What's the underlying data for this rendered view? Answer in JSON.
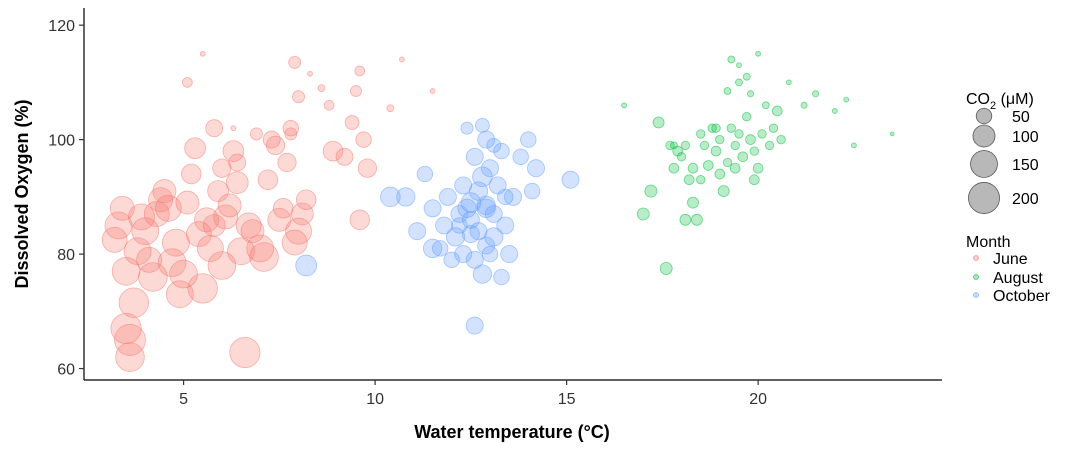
{
  "chart_data": {
    "type": "scatter",
    "xlabel": "Water temperature (°C)",
    "ylabel": "Dissolved Oxygen (%)",
    "xlim": [
      2.4,
      24.8
    ],
    "ylim": [
      58,
      123
    ],
    "xticks": [
      5,
      10,
      15,
      20
    ],
    "yticks": [
      60,
      80,
      100,
      120
    ],
    "grid": false,
    "legend_position": "right",
    "size_legend": {
      "title_main": "CO",
      "title_sub": "2",
      "title_suffix": " (μM)",
      "values": [
        50,
        100,
        150,
        200
      ]
    },
    "color_legend": {
      "title": "Month",
      "entries": [
        "June",
        "August",
        "October"
      ]
    },
    "series": [
      {
        "name": "June",
        "color": "#F8766D",
        "points": [
          [
            3.2,
            82.5,
            130
          ],
          [
            3.3,
            85,
            150
          ],
          [
            3.4,
            88,
            120
          ],
          [
            3.5,
            77,
            160
          ],
          [
            3.5,
            67,
            190
          ],
          [
            3.6,
            65,
            200
          ],
          [
            3.6,
            62,
            170
          ],
          [
            3.7,
            71.5,
            180
          ],
          [
            3.8,
            80.5,
            150
          ],
          [
            3.9,
            86.5,
            140
          ],
          [
            4.0,
            84,
            150
          ],
          [
            4.1,
            79,
            130
          ],
          [
            4.2,
            76,
            170
          ],
          [
            4.3,
            87,
            130
          ],
          [
            4.4,
            89.5,
            120
          ],
          [
            4.5,
            91,
            110
          ],
          [
            4.6,
            88,
            140
          ],
          [
            4.7,
            78.5,
            160
          ],
          [
            4.8,
            82,
            150
          ],
          [
            4.9,
            73,
            150
          ],
          [
            5.0,
            76.5,
            160
          ],
          [
            5.1,
            89,
            110
          ],
          [
            5.2,
            94,
            80
          ],
          [
            5.3,
            98.5,
            90
          ],
          [
            5.4,
            83.5,
            130
          ],
          [
            5.5,
            74,
            180
          ],
          [
            5.6,
            86,
            120
          ],
          [
            5.7,
            81,
            140
          ],
          [
            5.8,
            85,
            100
          ],
          [
            5.9,
            91,
            90
          ],
          [
            6.0,
            78,
            160
          ],
          [
            6.1,
            86.5,
            120
          ],
          [
            6.2,
            88.5,
            110
          ],
          [
            6.3,
            98,
            90
          ],
          [
            6.4,
            92.5,
            100
          ],
          [
            6.5,
            80.5,
            150
          ],
          [
            6.6,
            62.8,
            190
          ],
          [
            6.7,
            85,
            130
          ],
          [
            6.8,
            84,
            110
          ],
          [
            7.0,
            81,
            150
          ],
          [
            7.1,
            79.5,
            170
          ],
          [
            7.2,
            93,
            80
          ],
          [
            7.3,
            100,
            60
          ],
          [
            7.5,
            86,
            110
          ],
          [
            7.6,
            88,
            80
          ],
          [
            7.7,
            96,
            70
          ],
          [
            7.8,
            102,
            50
          ],
          [
            7.9,
            82,
            130
          ],
          [
            8.0,
            84,
            140
          ],
          [
            8.1,
            87,
            100
          ],
          [
            8.2,
            89.5,
            80
          ],
          [
            7.9,
            113.5,
            30
          ],
          [
            8.0,
            107.5,
            30
          ],
          [
            8.3,
            111.5,
            5
          ],
          [
            8.6,
            109,
            10
          ],
          [
            8.8,
            106,
            20
          ],
          [
            8.9,
            98,
            80
          ],
          [
            9.2,
            97,
            60
          ],
          [
            9.4,
            103,
            40
          ],
          [
            9.5,
            108.5,
            25
          ],
          [
            9.7,
            100,
            50
          ],
          [
            9.8,
            95,
            70
          ],
          [
            9.6,
            86,
            80
          ],
          [
            5.1,
            110,
            20
          ],
          [
            5.5,
            115,
            5
          ],
          [
            5.8,
            102,
            60
          ],
          [
            6.0,
            95,
            70
          ],
          [
            6.4,
            96,
            60
          ],
          [
            6.9,
            101,
            30
          ],
          [
            7.4,
            99,
            70
          ],
          [
            7.8,
            101,
            30
          ],
          [
            9.6,
            112,
            20
          ],
          [
            10.4,
            105.5,
            10
          ],
          [
            11.5,
            108.5,
            5
          ],
          [
            6.3,
            102,
            5
          ],
          [
            10.7,
            114,
            5
          ]
        ]
      },
      {
        "name": "August",
        "color": "#00BA38",
        "points": [
          [
            16.5,
            106,
            5
          ],
          [
            17.0,
            87,
            30
          ],
          [
            17.2,
            91,
            30
          ],
          [
            17.4,
            103,
            25
          ],
          [
            17.6,
            77.5,
            30
          ],
          [
            17.8,
            95,
            20
          ],
          [
            17.7,
            99,
            15
          ],
          [
            17.9,
            98,
            20
          ],
          [
            18.0,
            97,
            15
          ],
          [
            18.1,
            86,
            25
          ],
          [
            18.1,
            99,
            15
          ],
          [
            18.2,
            93,
            20
          ],
          [
            18.3,
            89,
            25
          ],
          [
            18.3,
            95,
            20
          ],
          [
            18.4,
            86,
            25
          ],
          [
            18.5,
            101,
            15
          ],
          [
            18.6,
            99,
            15
          ],
          [
            18.7,
            95.5,
            20
          ],
          [
            18.8,
            102,
            15
          ],
          [
            18.9,
            98,
            20
          ],
          [
            19.0,
            100,
            15
          ],
          [
            19.0,
            94,
            20
          ],
          [
            19.1,
            91,
            25
          ],
          [
            19.2,
            96,
            15
          ],
          [
            19.3,
            102,
            15
          ],
          [
            19.3,
            114,
            10
          ],
          [
            19.4,
            99,
            15
          ],
          [
            19.5,
            101,
            15
          ],
          [
            19.5,
            110,
            10
          ],
          [
            19.6,
            97,
            20
          ],
          [
            19.7,
            104,
            15
          ],
          [
            19.7,
            111,
            10
          ],
          [
            19.8,
            100,
            20
          ],
          [
            19.9,
            98,
            15
          ],
          [
            20.0,
            95,
            20
          ],
          [
            20.1,
            101,
            15
          ],
          [
            20.2,
            106,
            10
          ],
          [
            20.4,
            102,
            15
          ],
          [
            20.5,
            105,
            20
          ],
          [
            20.6,
            100,
            15
          ],
          [
            20.8,
            110,
            5
          ],
          [
            21.2,
            106,
            8
          ],
          [
            21.5,
            108,
            8
          ],
          [
            22.0,
            105,
            5
          ],
          [
            22.3,
            107,
            5
          ],
          [
            22.5,
            99,
            5
          ],
          [
            20.0,
            115,
            5
          ],
          [
            19.2,
            108.5,
            10
          ],
          [
            19.9,
            93,
            20
          ],
          [
            20.3,
            99,
            15
          ],
          [
            18.9,
            102,
            15
          ],
          [
            19.4,
            95,
            20
          ],
          [
            18.5,
            93,
            15
          ],
          [
            17.8,
            99,
            10
          ],
          [
            23.5,
            101,
            3
          ],
          [
            19.8,
            108,
            8
          ],
          [
            19.5,
            113,
            5
          ]
        ]
      },
      {
        "name": "October",
        "color": "#619CFF",
        "points": [
          [
            8.2,
            78,
            90
          ],
          [
            10.4,
            90,
            80
          ],
          [
            10.8,
            90,
            70
          ],
          [
            11.1,
            84,
            60
          ],
          [
            11.3,
            94,
            50
          ],
          [
            11.5,
            81,
            70
          ],
          [
            11.5,
            88,
            60
          ],
          [
            11.7,
            81,
            50
          ],
          [
            11.8,
            85,
            60
          ],
          [
            11.9,
            90,
            60
          ],
          [
            12.0,
            79,
            50
          ],
          [
            12.1,
            83,
            70
          ],
          [
            12.2,
            87,
            60
          ],
          [
            12.3,
            92,
            60
          ],
          [
            12.3,
            80,
            60
          ],
          [
            12.4,
            88,
            70
          ],
          [
            12.5,
            89,
            80
          ],
          [
            12.5,
            86,
            60
          ],
          [
            12.6,
            97,
            60
          ],
          [
            12.6,
            67.5,
            60
          ],
          [
            12.7,
            91,
            70
          ],
          [
            12.7,
            84,
            60
          ],
          [
            12.8,
            76.5,
            70
          ],
          [
            12.8,
            93.5,
            80
          ],
          [
            12.9,
            88,
            70
          ],
          [
            12.9,
            100,
            60
          ],
          [
            13.0,
            95,
            60
          ],
          [
            13.0,
            80,
            50
          ],
          [
            13.1,
            83,
            70
          ],
          [
            13.1,
            87,
            60
          ],
          [
            13.2,
            92,
            60
          ],
          [
            13.3,
            98,
            50
          ],
          [
            13.3,
            76,
            50
          ],
          [
            13.4,
            85,
            60
          ],
          [
            13.5,
            80,
            60
          ],
          [
            13.6,
            90,
            60
          ],
          [
            13.8,
            97,
            50
          ],
          [
            14.0,
            100,
            50
          ],
          [
            14.1,
            91,
            50
          ],
          [
            14.2,
            95,
            60
          ],
          [
            15.1,
            93,
            60
          ],
          [
            12.8,
            102.5,
            40
          ],
          [
            12.4,
            102,
            30
          ],
          [
            13.1,
            99,
            40
          ],
          [
            12.6,
            79,
            60
          ],
          [
            12.9,
            88.5,
            70
          ],
          [
            12.5,
            83.5,
            60
          ],
          [
            13.4,
            90,
            50
          ],
          [
            12.2,
            85,
            50
          ],
          [
            12.9,
            81.5,
            60
          ]
        ]
      }
    ]
  }
}
